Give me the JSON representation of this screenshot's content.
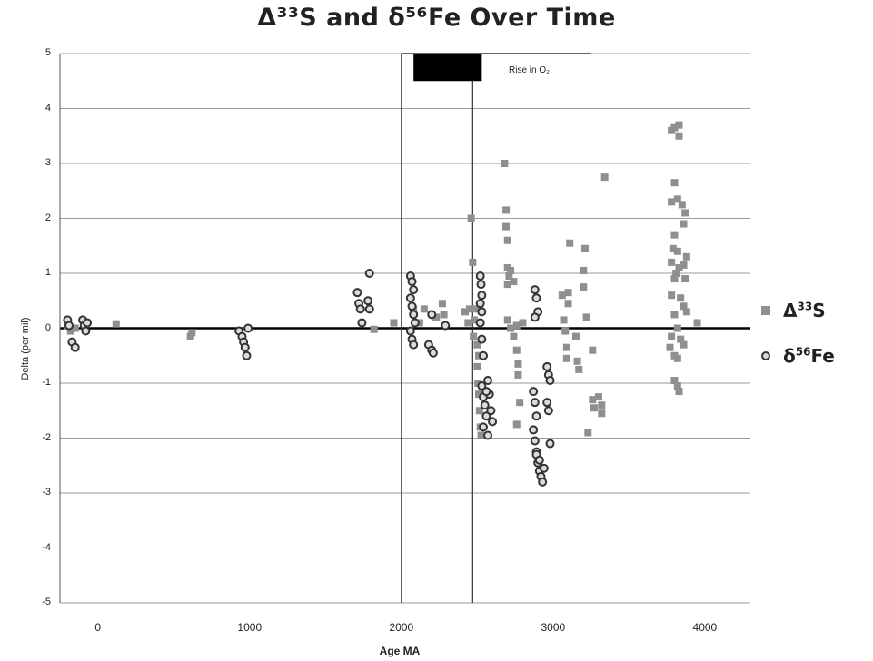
{
  "chart_data": {
    "type": "scatter",
    "title": "Δ³³S and δ⁵⁶Fe Over Time",
    "xlabel": "Age MA",
    "ylabel": "Delta (per mil)",
    "xlim": [
      -250,
      4300
    ],
    "ylim": [
      -5,
      5
    ],
    "x_ticks": [
      0,
      1000,
      2000,
      3000,
      4000
    ],
    "y_ticks": [
      5,
      4,
      3,
      2,
      1,
      0,
      -1,
      -2,
      -3,
      -4,
      -5
    ],
    "grid": "horizontal",
    "legend_placement": "right",
    "annotation": {
      "text": "Rise in O₂",
      "bar_x": [
        2080,
        2530
      ],
      "bar_y": [
        4.5,
        5.0
      ],
      "vertical_lines_x": [
        2000,
        2470
      ]
    },
    "series": [
      {
        "name": "Δ³³S",
        "marker": "square",
        "color": "#8f8f8f",
        "points": [
          [
            -200,
            0.05
          ],
          [
            -180,
            -0.05
          ],
          [
            -150,
            0.0
          ],
          [
            120,
            0.08
          ],
          [
            610,
            -0.15
          ],
          [
            620,
            -0.08
          ],
          [
            1820,
            -0.02
          ],
          [
            1950,
            0.1
          ],
          [
            2080,
            0.35
          ],
          [
            2120,
            0.1
          ],
          [
            2150,
            0.35
          ],
          [
            2230,
            0.2
          ],
          [
            2270,
            0.45
          ],
          [
            2280,
            0.25
          ],
          [
            2420,
            0.3
          ],
          [
            2440,
            0.1
          ],
          [
            2450,
            0.35
          ],
          [
            2460,
            2.0
          ],
          [
            2470,
            1.2
          ],
          [
            2475,
            -0.15
          ],
          [
            2480,
            0.15
          ],
          [
            2490,
            0.35
          ],
          [
            2500,
            -0.7
          ],
          [
            2505,
            -1.0
          ],
          [
            2510,
            -1.2
          ],
          [
            2515,
            -1.5
          ],
          [
            2520,
            -1.8
          ],
          [
            2525,
            -1.95
          ],
          [
            2500,
            -0.3
          ],
          [
            2510,
            -0.5
          ],
          [
            2680,
            3.0
          ],
          [
            2690,
            2.15
          ],
          [
            2690,
            1.85
          ],
          [
            2700,
            1.6
          ],
          [
            2700,
            1.1
          ],
          [
            2710,
            0.95
          ],
          [
            2700,
            0.8
          ],
          [
            2720,
            1.05
          ],
          [
            2740,
            0.85
          ],
          [
            2700,
            0.15
          ],
          [
            2720,
            0.0
          ],
          [
            2740,
            -0.15
          ],
          [
            2760,
            0.05
          ],
          [
            2760,
            -0.4
          ],
          [
            2770,
            -0.65
          ],
          [
            2770,
            -0.85
          ],
          [
            2780,
            -1.35
          ],
          [
            2760,
            -1.75
          ],
          [
            2800,
            0.1
          ],
          [
            3060,
            0.6
          ],
          [
            3070,
            0.15
          ],
          [
            3080,
            -0.05
          ],
          [
            3090,
            -0.35
          ],
          [
            3090,
            -0.55
          ],
          [
            3100,
            0.45
          ],
          [
            3100,
            0.65
          ],
          [
            3110,
            1.55
          ],
          [
            3150,
            -0.15
          ],
          [
            3160,
            -0.6
          ],
          [
            3170,
            -0.75
          ],
          [
            3200,
            0.75
          ],
          [
            3200,
            1.05
          ],
          [
            3210,
            1.45
          ],
          [
            3220,
            0.2
          ],
          [
            3230,
            -1.9
          ],
          [
            3260,
            -0.4
          ],
          [
            3260,
            -1.3
          ],
          [
            3270,
            -1.45
          ],
          [
            3300,
            -1.25
          ],
          [
            3320,
            -1.55
          ],
          [
            3320,
            -1.4
          ],
          [
            3340,
            2.75
          ],
          [
            3780,
            3.6
          ],
          [
            3800,
            3.65
          ],
          [
            3830,
            3.7
          ],
          [
            3830,
            3.5
          ],
          [
            3800,
            2.65
          ],
          [
            3780,
            2.3
          ],
          [
            3820,
            2.35
          ],
          [
            3850,
            2.25
          ],
          [
            3870,
            2.1
          ],
          [
            3800,
            1.7
          ],
          [
            3820,
            1.4
          ],
          [
            3780,
            1.2
          ],
          [
            3810,
            1.0
          ],
          [
            3830,
            1.1
          ],
          [
            3860,
            1.15
          ],
          [
            3880,
            1.3
          ],
          [
            3800,
            0.9
          ],
          [
            3780,
            0.6
          ],
          [
            3840,
            0.55
          ],
          [
            3860,
            0.4
          ],
          [
            3880,
            0.3
          ],
          [
            3800,
            0.25
          ],
          [
            3820,
            0.0
          ],
          [
            3780,
            -0.15
          ],
          [
            3840,
            -0.2
          ],
          [
            3860,
            -0.3
          ],
          [
            3800,
            -0.5
          ],
          [
            3820,
            -0.55
          ],
          [
            3800,
            -0.95
          ],
          [
            3820,
            -1.05
          ],
          [
            3830,
            -1.15
          ],
          [
            3860,
            1.9
          ],
          [
            3870,
            0.9
          ],
          [
            3950,
            0.1
          ],
          [
            3770,
            -0.35
          ],
          [
            3790,
            1.45
          ]
        ]
      },
      {
        "name": "δ⁵⁶Fe",
        "marker": "circle",
        "color": "#333333",
        "points": [
          [
            -200,
            0.15
          ],
          [
            -190,
            0.05
          ],
          [
            -170,
            -0.25
          ],
          [
            -150,
            -0.35
          ],
          [
            -100,
            0.15
          ],
          [
            -90,
            0.05
          ],
          [
            -80,
            -0.05
          ],
          [
            -70,
            0.1
          ],
          [
            930,
            -0.05
          ],
          [
            950,
            -0.15
          ],
          [
            960,
            -0.25
          ],
          [
            970,
            -0.35
          ],
          [
            980,
            -0.5
          ],
          [
            990,
            0.0
          ],
          [
            1710,
            0.65
          ],
          [
            1720,
            0.45
          ],
          [
            1730,
            0.35
          ],
          [
            1740,
            0.1
          ],
          [
            1790,
            1.0
          ],
          [
            1780,
            0.5
          ],
          [
            1790,
            0.35
          ],
          [
            2060,
            0.95
          ],
          [
            2070,
            0.85
          ],
          [
            2080,
            0.7
          ],
          [
            2060,
            0.55
          ],
          [
            2070,
            0.4
          ],
          [
            2080,
            0.25
          ],
          [
            2090,
            0.1
          ],
          [
            2060,
            -0.05
          ],
          [
            2070,
            -0.2
          ],
          [
            2080,
            -0.3
          ],
          [
            2180,
            -0.3
          ],
          [
            2200,
            -0.4
          ],
          [
            2210,
            -0.45
          ],
          [
            2200,
            0.25
          ],
          [
            2290,
            0.05
          ],
          [
            2520,
            0.95
          ],
          [
            2525,
            0.8
          ],
          [
            2530,
            0.6
          ],
          [
            2520,
            0.45
          ],
          [
            2530,
            0.3
          ],
          [
            2520,
            0.1
          ],
          [
            2530,
            -0.2
          ],
          [
            2540,
            -0.5
          ],
          [
            2530,
            -1.05
          ],
          [
            2540,
            -1.25
          ],
          [
            2550,
            -1.4
          ],
          [
            2560,
            -1.6
          ],
          [
            2540,
            -1.8
          ],
          [
            2570,
            -1.95
          ],
          [
            2580,
            -1.2
          ],
          [
            2590,
            -1.5
          ],
          [
            2600,
            -1.7
          ],
          [
            2570,
            -0.95
          ],
          [
            2560,
            -1.15
          ],
          [
            2880,
            0.7
          ],
          [
            2890,
            0.55
          ],
          [
            2900,
            0.3
          ],
          [
            2880,
            0.2
          ],
          [
            2870,
            -1.15
          ],
          [
            2880,
            -1.35
          ],
          [
            2890,
            -1.6
          ],
          [
            2870,
            -1.85
          ],
          [
            2880,
            -2.05
          ],
          [
            2890,
            -2.25
          ],
          [
            2900,
            -2.45
          ],
          [
            2910,
            -2.6
          ],
          [
            2920,
            -2.7
          ],
          [
            2930,
            -2.8
          ],
          [
            2940,
            -2.55
          ],
          [
            2890,
            -2.3
          ],
          [
            2910,
            -2.4
          ],
          [
            2960,
            -0.7
          ],
          [
            2970,
            -0.85
          ],
          [
            2980,
            -0.95
          ],
          [
            2960,
            -1.35
          ],
          [
            2970,
            -1.5
          ],
          [
            2980,
            -2.1
          ]
        ]
      }
    ]
  },
  "legend": {
    "s33": {
      "symbol": "Δ",
      "sup": "33",
      "base": "S"
    },
    "fe56": {
      "symbol": "δ",
      "sup": "56",
      "base": "Fe"
    }
  },
  "annotation_text": "Rise in O₂"
}
